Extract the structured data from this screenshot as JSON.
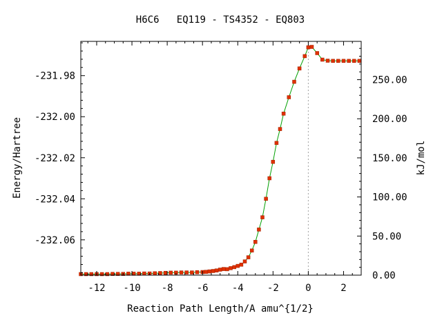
{
  "chart_data": {
    "type": "line",
    "title": "H6C6   EQ119 - TS4352 - EQ803",
    "xlabel": "Reaction Path Length/A amu^{1/2}",
    "ylabel": "Energy/Hartree",
    "y2label": "kJ/mol",
    "xlim": [
      -12.9,
      3.0
    ],
    "ylim": [
      -232.0772,
      -231.9633
    ],
    "y2lim": [
      0,
      299
    ],
    "x_ticks": [
      -12,
      -10,
      -8,
      -6,
      -4,
      -2,
      0,
      2
    ],
    "x_tick_labels": [
      "-12",
      "-10",
      "-8",
      "-6",
      "-4",
      "-2",
      "0",
      "2"
    ],
    "y_ticks": [
      -231.98,
      -232.0,
      -232.02,
      -232.04,
      -232.06
    ],
    "y_tick_labels": [
      "-231.98",
      "-232.00",
      "-232.02",
      "-232.04",
      "-232.06"
    ],
    "y2_ticks": [
      0,
      50,
      100,
      150,
      200,
      250
    ],
    "y2_tick_labels": [
      "0.00",
      "50.00",
      "100.00",
      "150.00",
      "200.00",
      "250.00"
    ],
    "ts_marker_x": 0.0,
    "grid": false,
    "colors": {
      "line": "#00a000",
      "point": "#e03000",
      "ts_line": "#a0a0a0",
      "axis": "#000000"
    },
    "series": [
      {
        "x": [
          -12.9,
          -12.6,
          -12.3,
          -12.0,
          -11.7,
          -11.4,
          -11.1,
          -10.8,
          -10.5,
          -10.2,
          -9.9,
          -9.6,
          -9.3,
          -9.0,
          -8.7,
          -8.4,
          -8.1,
          -7.8,
          -7.5,
          -7.2,
          -6.9,
          -6.6,
          -6.3,
          -6.0,
          -5.8,
          -5.6,
          -5.4,
          -5.2,
          -5.0,
          -4.8,
          -4.6,
          -4.4,
          -4.2,
          -4.0,
          -3.8,
          -3.6,
          -3.4,
          -3.2,
          -3.0,
          -2.8,
          -2.6,
          -2.4,
          -2.2,
          -2.0,
          -1.8,
          -1.6,
          -1.4,
          -1.1,
          -0.8,
          -0.5,
          -0.2,
          0.0,
          0.2,
          0.5,
          0.8,
          1.1,
          1.4,
          1.7,
          2.0,
          2.3,
          2.6,
          2.9
        ],
        "y": [
          -232.0767,
          -232.0767,
          -232.0767,
          -232.0767,
          -232.0767,
          -232.0767,
          -232.0766,
          -232.0766,
          -232.0766,
          -232.0765,
          -232.0765,
          -232.0765,
          -232.0764,
          -232.0764,
          -232.0763,
          -232.0762,
          -232.0761,
          -232.076,
          -232.076,
          -232.0759,
          -232.0759,
          -232.0759,
          -232.0758,
          -232.0757,
          -232.0756,
          -232.0754,
          -232.0752,
          -232.0749,
          -232.0745,
          -232.0742,
          -232.0743,
          -232.0738,
          -232.0733,
          -232.0727,
          -232.0721,
          -232.0705,
          -232.0685,
          -232.0652,
          -232.061,
          -232.055,
          -232.049,
          -232.04,
          -232.03,
          -232.022,
          -232.0128,
          -232.006,
          -231.9985,
          -231.9905,
          -231.983,
          -231.9765,
          -231.9705,
          -231.9662,
          -231.966,
          -231.969,
          -231.9722,
          -231.9727,
          -231.9728,
          -231.9728,
          -231.9728,
          -231.9728,
          -231.9728,
          -231.9728
        ]
      }
    ]
  }
}
